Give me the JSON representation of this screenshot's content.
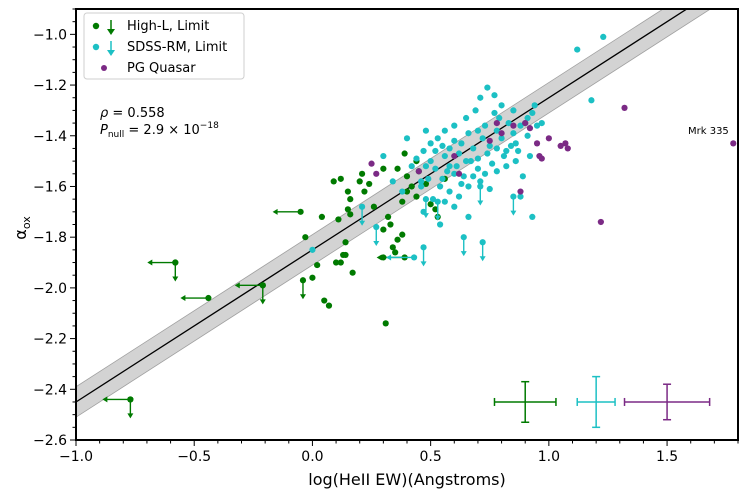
{
  "chart_data": {
    "type": "scatter",
    "xlabel": "log(HeII EW)(Angstroms)",
    "ylabel": "α_ox",
    "xlim": [
      -1.0,
      1.8
    ],
    "ylim": [
      -2.6,
      -0.9
    ],
    "x_ticks": [
      -1.0,
      -0.5,
      0.0,
      0.5,
      1.0,
      1.5
    ],
    "x_tick_labels": [
      "−1.0",
      "−0.5",
      "0.0",
      "0.5",
      "1.0",
      "1.5"
    ],
    "y_ticks": [
      -2.6,
      -2.4,
      -2.2,
      -2.0,
      -1.8,
      -1.6,
      -1.4,
      -1.2,
      -1.0
    ],
    "y_tick_labels": [
      "−2.6",
      "−2.4",
      "−2.2",
      "−2.0",
      "−1.8",
      "−1.6",
      "−1.4",
      "−1.2",
      "−1.0"
    ],
    "legend": {
      "placement": "top-left",
      "entries": [
        {
          "label": "High-L, Limit",
          "color": "#007a00",
          "marker": "circle+arrow"
        },
        {
          "label": "SDSS-RM, Limit",
          "color": "#1cc0c4",
          "marker": "circle+arrow"
        },
        {
          "label": "PG Quasar",
          "color": "#7b2a85",
          "marker": "circle"
        }
      ]
    },
    "annotations": {
      "rho_symbol": "ρ",
      "rho_value": " = 0.558",
      "pnull_symbol": "P",
      "pnull_sub": "null",
      "pnull_value": " = 2.9 × 10",
      "pnull_exp": "−18",
      "mrk_label": "Mrk 335"
    },
    "fit_line": {
      "slope": 0.6,
      "intercept": -1.85,
      "band_halfwidth": 0.06,
      "color": "#000000",
      "band_color": "#d3d3d3"
    },
    "series": [
      {
        "name": "High-L",
        "color": "#007a00",
        "points": [
          [
            0.09,
            -1.58
          ],
          [
            0.12,
            -1.57
          ],
          [
            0.15,
            -1.62
          ],
          [
            0.16,
            -1.65
          ],
          [
            0.15,
            -1.69
          ],
          [
            0.16,
            -1.71
          ],
          [
            0.11,
            -1.73
          ],
          [
            0.2,
            -1.58
          ],
          [
            0.24,
            -1.59
          ],
          [
            0.26,
            -1.68
          ],
          [
            0.3,
            -1.53
          ],
          [
            0.3,
            -1.77
          ],
          [
            0.32,
            -1.72
          ],
          [
            0.33,
            -1.75
          ],
          [
            0.36,
            -1.81
          ],
          [
            0.38,
            -1.79
          ],
          [
            0.38,
            -1.66
          ],
          [
            0.4,
            -1.62
          ],
          [
            0.44,
            -1.5
          ],
          [
            0.44,
            -1.64
          ],
          [
            0.45,
            -1.54
          ],
          [
            0.48,
            -1.59
          ],
          [
            0.5,
            -1.67
          ],
          [
            0.52,
            -1.69
          ],
          [
            0.56,
            -1.57
          ],
          [
            0.53,
            -1.72
          ],
          [
            0.21,
            -1.55
          ],
          [
            0.36,
            -1.53
          ],
          [
            0.39,
            -1.47
          ],
          [
            0.4,
            -1.56
          ],
          [
            0.42,
            -1.6
          ],
          [
            0.34,
            -1.84
          ],
          [
            0.3,
            -1.88
          ],
          [
            0.35,
            -1.86
          ],
          [
            0.0,
            -1.96
          ],
          [
            -0.03,
            -1.8
          ],
          [
            0.02,
            -1.91
          ],
          [
            0.04,
            -1.72
          ],
          [
            0.05,
            -2.05
          ],
          [
            0.07,
            -2.07
          ],
          [
            0.1,
            -1.9
          ],
          [
            0.13,
            -1.87
          ],
          [
            0.14,
            -1.87
          ],
          [
            0.17,
            -1.94
          ],
          [
            0.14,
            -1.82
          ],
          [
            0.31,
            -2.14
          ],
          [
            0.22,
            -1.62
          ],
          [
            0.12,
            -1.9
          ]
        ],
        "limits": [
          [
            -0.05,
            -1.7,
            "left"
          ],
          [
            -0.58,
            -1.9,
            "left"
          ],
          [
            -0.44,
            -2.04,
            "left"
          ],
          [
            -0.21,
            -1.99,
            "left"
          ],
          [
            -0.77,
            -2.44,
            "left"
          ],
          [
            -0.58,
            -1.9,
            "down"
          ],
          [
            -0.21,
            -1.99,
            "down"
          ],
          [
            -0.77,
            -2.44,
            "down"
          ],
          [
            -0.04,
            -1.97,
            "down"
          ],
          [
            0.39,
            -1.88,
            "left"
          ]
        ]
      },
      {
        "name": "SDSS-RM",
        "color": "#1cc0c4",
        "points": [
          [
            0.48,
            -1.52
          ],
          [
            0.5,
            -1.5
          ],
          [
            0.52,
            -1.46
          ],
          [
            0.55,
            -1.44
          ],
          [
            0.56,
            -1.48
          ],
          [
            0.58,
            -1.52
          ],
          [
            0.6,
            -1.55
          ],
          [
            0.62,
            -1.47
          ],
          [
            0.63,
            -1.43
          ],
          [
            0.65,
            -1.5
          ],
          [
            0.66,
            -1.39
          ],
          [
            0.68,
            -1.45
          ],
          [
            0.7,
            -1.49
          ],
          [
            0.72,
            -1.41
          ],
          [
            0.73,
            -1.36
          ],
          [
            0.75,
            -1.44
          ],
          [
            0.76,
            -1.51
          ],
          [
            0.78,
            -1.38
          ],
          [
            0.79,
            -1.33
          ],
          [
            0.8,
            -1.41
          ],
          [
            0.82,
            -1.46
          ],
          [
            0.83,
            -1.35
          ],
          [
            0.85,
            -1.39
          ],
          [
            0.86,
            -1.43
          ],
          [
            0.88,
            -1.36
          ],
          [
            0.9,
            -1.35
          ],
          [
            0.91,
            -1.4
          ],
          [
            0.93,
            -1.31
          ],
          [
            0.95,
            -1.36
          ],
          [
            0.97,
            -1.35
          ],
          [
            0.74,
            -1.21
          ],
          [
            0.77,
            -1.24
          ],
          [
            0.8,
            -1.28
          ],
          [
            0.69,
            -1.3
          ],
          [
            0.71,
            -1.25
          ],
          [
            0.6,
            -1.36
          ],
          [
            0.56,
            -1.38
          ],
          [
            0.53,
            -1.41
          ],
          [
            0.5,
            -1.43
          ],
          [
            0.47,
            -1.46
          ],
          [
            0.44,
            -1.49
          ],
          [
            0.42,
            -1.52
          ],
          [
            0.46,
            -1.58
          ],
          [
            0.54,
            -1.6
          ],
          [
            0.58,
            -1.62
          ],
          [
            0.62,
            -1.64
          ],
          [
            0.66,
            -1.6
          ],
          [
            0.68,
            -1.56
          ],
          [
            0.71,
            -1.58
          ],
          [
            0.75,
            -1.61
          ],
          [
            0.78,
            -1.54
          ],
          [
            0.82,
            -1.52
          ],
          [
            0.86,
            -1.5
          ],
          [
            0.89,
            -1.56
          ],
          [
            0.92,
            -1.48
          ],
          [
            0.3,
            -1.48
          ],
          [
            0.4,
            -1.41
          ],
          [
            0.34,
            -1.58
          ],
          [
            0.38,
            -1.62
          ],
          [
            0.51,
            -1.65
          ],
          [
            0.56,
            -1.66
          ],
          [
            0.6,
            -1.68
          ],
          [
            0.47,
            -1.7
          ],
          [
            0.54,
            -1.75
          ],
          [
            0.66,
            -1.72
          ],
          [
            0.88,
            -1.64
          ],
          [
            0.93,
            -1.72
          ],
          [
            0.64,
            -1.56
          ],
          [
            0.57,
            -1.54
          ],
          [
            0.61,
            -1.52
          ],
          [
            0.67,
            -1.5
          ],
          [
            0.7,
            -1.53
          ],
          [
            0.73,
            -1.55
          ],
          [
            0.81,
            -1.48
          ],
          [
            0.84,
            -1.44
          ],
          [
            0.87,
            -1.46
          ],
          [
            0.52,
            -1.53
          ],
          [
            0.55,
            -1.57
          ],
          [
            0.7,
            -1.38
          ],
          [
            0.65,
            -1.33
          ],
          [
            0.77,
            -1.31
          ],
          [
            0.85,
            -1.3
          ],
          [
            0.91,
            -1.33
          ],
          [
            0.94,
            -1.28
          ],
          [
            0.6,
            -1.42
          ],
          [
            0.48,
            -1.38
          ],
          [
            1.12,
            -1.06
          ],
          [
            1.23,
            -1.01
          ],
          [
            1.18,
            -1.26
          ],
          [
            0.0,
            -1.85
          ],
          [
            0.46,
            -1.6
          ],
          [
            0.49,
            -1.57
          ],
          [
            0.63,
            -1.59
          ],
          [
            0.74,
            -1.47
          ],
          [
            0.78,
            -1.45
          ],
          [
            0.58,
            -1.45
          ]
        ],
        "limits": [
          [
            0.21,
            -1.68,
            "down"
          ],
          [
            0.27,
            -1.76,
            "down"
          ],
          [
            0.47,
            -1.84,
            "down"
          ],
          [
            0.64,
            -1.8,
            "down"
          ],
          [
            0.72,
            -1.82,
            "down"
          ],
          [
            0.85,
            -1.64,
            "down"
          ],
          [
            0.71,
            -1.6,
            "down"
          ],
          [
            0.48,
            -1.65,
            "down"
          ],
          [
            0.43,
            -1.88,
            "left"
          ],
          [
            0.53,
            -1.66,
            "down"
          ]
        ]
      },
      {
        "name": "PG Quasar",
        "color": "#7b2a85",
        "points": [
          [
            0.25,
            -1.51
          ],
          [
            0.45,
            -1.54
          ],
          [
            0.6,
            -1.48
          ],
          [
            0.62,
            -1.55
          ],
          [
            0.75,
            -1.42
          ],
          [
            0.8,
            -1.39
          ],
          [
            0.85,
            -1.36
          ],
          [
            0.9,
            -1.35
          ],
          [
            0.92,
            -1.37
          ],
          [
            0.95,
            -1.43
          ],
          [
            0.96,
            -1.48
          ],
          [
            0.97,
            -1.49
          ],
          [
            1.0,
            -1.41
          ],
          [
            1.05,
            -1.44
          ],
          [
            1.07,
            -1.43
          ],
          [
            1.08,
            -1.45
          ],
          [
            0.88,
            -1.62
          ],
          [
            0.78,
            -1.35
          ],
          [
            1.32,
            -1.29
          ],
          [
            1.22,
            -1.74
          ],
          [
            1.78,
            -1.43
          ],
          [
            0.27,
            -1.55
          ]
        ]
      }
    ],
    "error_crosses": [
      {
        "color": "#007a00",
        "x": 0.9,
        "y": -2.45,
        "dx": 0.13,
        "dy": 0.08
      },
      {
        "color": "#1cc0c4",
        "x": 1.2,
        "y": -2.45,
        "dx": 0.08,
        "dy": 0.1
      },
      {
        "color": "#7b2a85",
        "x": 1.5,
        "y": -2.45,
        "dx": 0.18,
        "dy": 0.07
      }
    ]
  }
}
